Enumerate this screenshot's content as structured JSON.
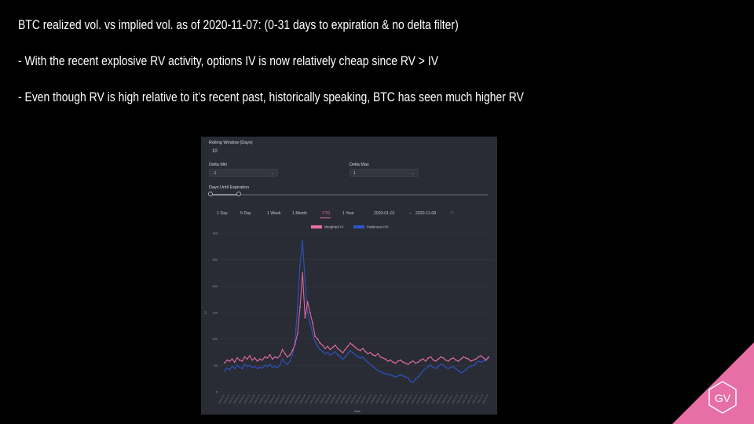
{
  "bullets": [
    "BTC realized vol. vs implied vol. as of 2020-11-07: (0-31 days to expiration & no delta filter)",
    "- With the recent explosive RV activity, options IV is now relatively cheap since RV > IV",
    "- Even though RV is high relative to it’s recent past, historically speaking, BTC has seen much higher RV"
  ],
  "panel": {
    "rolling_window_label": "Rolling Window (Days)",
    "rolling_window_value": "10",
    "delta_min_label": "Delta Min",
    "delta_min_value": "-1",
    "delta_max_label": "Delta Max",
    "delta_max_value": "1",
    "expiration_label": "Days Until Expiration",
    "range_tabs": [
      "1 Day",
      "5 Day",
      "1 Week",
      "1 Month",
      "YTD",
      "1 Year"
    ],
    "active_tab": "YTD",
    "date_start": "2020-01-01",
    "date_sep": "–",
    "date_end": "2020-11-08"
  },
  "chart_data": {
    "type": "line",
    "xlabel": "Date",
    "ylabel": "IV",
    "ylim": [
      0,
      300
    ],
    "yticks": [
      0,
      50,
      100,
      150,
      200,
      250,
      300
    ],
    "legend_position": "top-center",
    "x_range": [
      "2020-01-01",
      "2020-11-08"
    ],
    "series": [
      {
        "name": "Weighted IV",
        "color": "#e86fa5",
        "values": [
          55,
          60,
          58,
          62,
          56,
          64,
          60,
          58,
          66,
          62,
          68,
          60,
          64,
          58,
          62,
          60,
          66,
          64,
          70,
          62,
          66,
          64,
          68,
          80,
          72,
          66,
          70,
          78,
          90,
          110,
          160,
          225,
          140,
          170,
          150,
          130,
          105,
          100,
          92,
          88,
          82,
          86,
          80,
          84,
          88,
          82,
          78,
          74,
          80,
          86,
          92,
          88,
          84,
          80,
          78,
          82,
          76,
          72,
          74,
          70,
          68,
          72,
          66,
          64,
          62,
          58,
          60,
          56,
          54,
          58,
          60,
          56,
          54,
          52,
          56,
          58,
          54,
          56,
          60,
          62,
          58,
          64,
          66,
          60,
          58,
          62,
          66,
          64,
          60,
          58,
          62,
          64,
          60,
          58,
          62,
          66,
          64,
          62,
          58,
          60,
          62,
          66,
          68,
          64,
          60,
          66
        ]
      },
      {
        "name": "Parkinson HV",
        "color": "#2d55c9",
        "values": [
          40,
          45,
          42,
          48,
          44,
          50,
          46,
          44,
          52,
          48,
          50,
          46,
          48,
          44,
          46,
          45,
          50,
          48,
          52,
          46,
          48,
          46,
          50,
          62,
          55,
          52,
          58,
          70,
          95,
          160,
          240,
          285,
          210,
          150,
          130,
          110,
          95,
          86,
          80,
          76,
          72,
          74,
          70,
          72,
          76,
          70,
          66,
          62,
          66,
          72,
          78,
          74,
          70,
          66,
          64,
          66,
          60,
          56,
          52,
          48,
          44,
          40,
          38,
          36,
          34,
          33,
          32,
          30,
          28,
          30,
          32,
          30,
          28,
          26,
          20,
          18,
          24,
          28,
          34,
          40,
          44,
          48,
          50,
          46,
          44,
          48,
          52,
          50,
          46,
          44,
          46,
          48,
          44,
          40,
          36,
          38,
          42,
          46,
          48,
          50,
          54,
          58,
          56,
          58,
          60,
          64
        ]
      }
    ]
  },
  "logo_text": "GV"
}
